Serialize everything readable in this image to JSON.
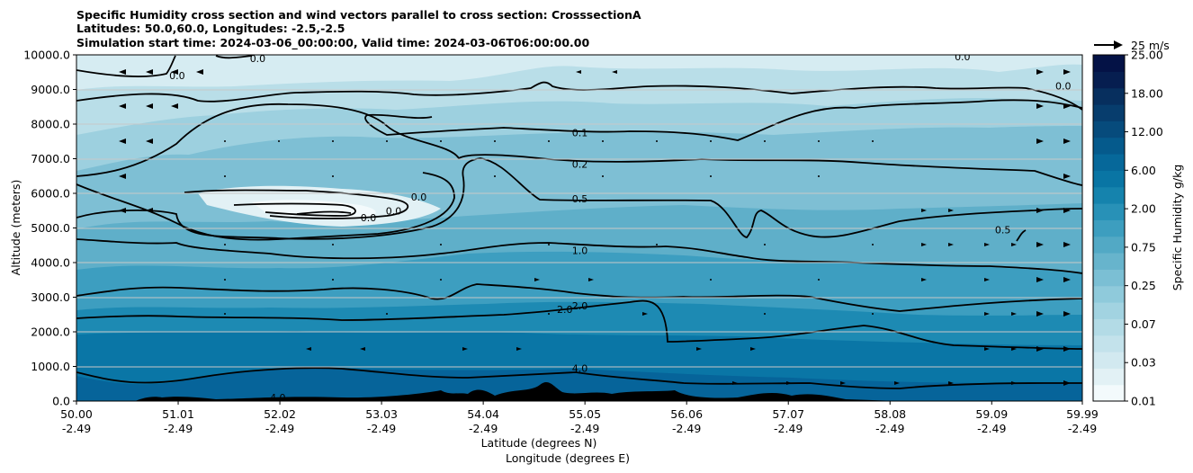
{
  "chart_data": {
    "type": "contour",
    "title_lines": [
      "Specific Humidity cross section and wind vectors parallel to cross section: CrosssectionA",
      "Latitudes: 50.0,60.0, Longitudes: -2.5,-2.5",
      "Simulation start time: 2024-03-06_00:00:00, Valid time: 2024-03-06T06:00:00.00"
    ],
    "ylabel": "Altitude (meters)",
    "xlabel_lat": "Latitude (degrees N)",
    "xlabel_lon": "Longitude (degrees E)",
    "ylim": [
      0,
      10000
    ],
    "yticks": [
      "0.0",
      "1000.0",
      "2000.0",
      "3000.0",
      "4000.0",
      "5000.0",
      "6000.0",
      "7000.0",
      "8000.0",
      "9000.0",
      "10000.0"
    ],
    "xticks": [
      {
        "lat": "50.00",
        "lon": "-2.49"
      },
      {
        "lat": "51.01",
        "lon": "-2.49"
      },
      {
        "lat": "52.02",
        "lon": "-2.49"
      },
      {
        "lat": "53.03",
        "lon": "-2.49"
      },
      {
        "lat": "54.04",
        "lon": "-2.49"
      },
      {
        "lat": "55.05",
        "lon": "-2.49"
      },
      {
        "lat": "56.06",
        "lon": "-2.49"
      },
      {
        "lat": "57.07",
        "lon": "-2.49"
      },
      {
        "lat": "58.08",
        "lon": "-2.49"
      },
      {
        "lat": "59.09",
        "lon": "-2.49"
      },
      {
        "lat": "59.99",
        "lon": "-2.49"
      }
    ],
    "colorbar": {
      "label": "Specific Humidity g/kg",
      "tick_labels": [
        "0.01",
        "0.03",
        "0.07",
        "0.25",
        "0.75",
        "2.00",
        "6.00",
        "12.00",
        "18.00",
        "25.00"
      ],
      "colors": [
        "#f3fafc",
        "#e2f1f5",
        "#d2e9f0",
        "#c3e2eb",
        "#b3dbe6",
        "#a2d3e1",
        "#8fcadb",
        "#7bbfd4",
        "#67b4cc",
        "#52a9c5",
        "#3d9ebf",
        "#2891b7",
        "#1583ad",
        "#0975a4",
        "#06689a",
        "#055a8c",
        "#064b7c",
        "#073d6d",
        "#072f5e",
        "#061e50",
        "#041246"
      ]
    },
    "contour_levels": [
      "0.0",
      "0.1",
      "0.2",
      "0.5",
      "1.0",
      "2.0",
      "4.0"
    ],
    "contour_labels": [
      {
        "text": "0.1",
        "lat": 55.0,
        "alt": 7750
      },
      {
        "text": "0.2",
        "lat": 55.0,
        "alt": 6850
      },
      {
        "text": "0.5",
        "lat": 55.0,
        "alt": 5850
      },
      {
        "text": "1.0",
        "lat": 55.0,
        "alt": 4350
      },
      {
        "text": "2.0",
        "lat": 55.0,
        "alt": 2750
      },
      {
        "text": "2.0",
        "lat": 54.85,
        "alt": 2650
      },
      {
        "text": "4.0",
        "lat": 55.0,
        "alt": 950
      },
      {
        "text": "4.0",
        "lat": 52.0,
        "alt": 100
      },
      {
        "text": "0.0",
        "lat": 53.4,
        "alt": 5900
      },
      {
        "text": "0.0",
        "lat": 52.9,
        "alt": 5300
      },
      {
        "text": "0.0",
        "lat": 53.15,
        "alt": 5500
      },
      {
        "text": "0.0",
        "lat": 51.0,
        "alt": 9400
      },
      {
        "text": "0.0",
        "lat": 51.8,
        "alt": 9900
      },
      {
        "text": "0.0",
        "lat": 58.8,
        "alt": 9950
      },
      {
        "text": "0.0",
        "lat": 59.8,
        "alt": 9100
      },
      {
        "text": "0.5",
        "lat": 59.2,
        "alt": 4950
      }
    ],
    "wind_reference": "25 m/s",
    "legend_position": "top-right"
  }
}
